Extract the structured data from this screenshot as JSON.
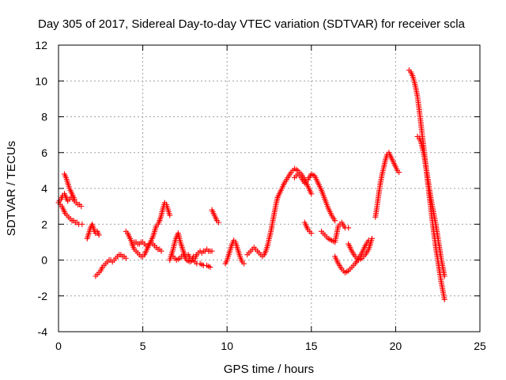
{
  "chart_data": {
    "type": "scatter",
    "title": "Day 305 of 2017, Sidereal Day-to-day VTEC variation (SDTVAR) for receiver scla",
    "xlabel": "GPS time / hours",
    "ylabel": "SDTVAR / TECUs",
    "xlim": [
      0,
      25
    ],
    "ylim": [
      -4,
      12
    ],
    "xticks": [
      0,
      5,
      10,
      15,
      20,
      25
    ],
    "yticks": [
      -4,
      -2,
      0,
      2,
      4,
      6,
      8,
      10,
      12
    ],
    "grid": true,
    "legend": "none",
    "marker": "plus",
    "color": "#ff0000",
    "series": [
      {
        "name": "s1",
        "x": [
          0.0,
          0.1,
          0.2,
          0.3,
          0.4,
          0.5,
          0.6,
          0.7,
          0.8,
          0.9,
          1.0,
          1.1,
          1.2,
          1.4
        ],
        "y": [
          3.2,
          3.1,
          3.0,
          2.8,
          2.6,
          2.5,
          2.4,
          2.3,
          2.2,
          2.2,
          2.1,
          2.1,
          2.0,
          2.0
        ]
      },
      {
        "name": "s2",
        "x": [
          0.05,
          0.15,
          0.25,
          0.35,
          0.45,
          0.55,
          0.65,
          0.75,
          0.85,
          0.95,
          1.05,
          1.15,
          1.25,
          1.35
        ],
        "y": [
          3.3,
          3.4,
          3.6,
          3.7,
          3.5,
          3.3,
          3.4,
          3.5,
          3.4,
          3.3,
          3.2,
          3.1,
          3.1,
          3.0
        ]
      },
      {
        "name": "s3",
        "x": [
          0.35,
          0.45,
          0.55,
          0.65,
          0.75,
          0.85,
          0.95
        ],
        "y": [
          4.8,
          4.6,
          4.3,
          4.0,
          3.8,
          3.6,
          3.4
        ]
      },
      {
        "name": "s4",
        "x": [
          1.7,
          1.8,
          1.9,
          2.0,
          2.1,
          2.2,
          2.3,
          2.4
        ],
        "y": [
          1.2,
          1.5,
          1.8,
          2.0,
          1.7,
          1.5,
          1.6,
          1.4
        ]
      },
      {
        "name": "s5",
        "x": [
          2.2,
          2.3,
          2.4,
          2.5,
          2.6,
          2.7,
          2.8,
          2.9,
          3.0,
          3.1,
          3.2,
          3.3,
          3.4,
          3.5,
          3.6,
          3.7,
          3.8,
          3.9,
          4.0
        ],
        "y": [
          -0.9,
          -0.8,
          -0.7,
          -0.6,
          -0.4,
          -0.3,
          -0.2,
          -0.1,
          0.0,
          0.0,
          -0.1,
          0.0,
          0.1,
          0.2,
          0.3,
          0.3,
          0.2,
          0.2,
          0.1
        ]
      },
      {
        "name": "s6",
        "x": [
          4.0,
          4.1,
          4.2,
          4.3,
          4.4,
          4.5,
          4.6,
          4.7,
          4.8,
          4.9,
          5.0,
          5.1,
          5.2,
          5.3,
          5.4,
          5.5,
          5.6,
          5.7,
          5.8,
          5.9,
          6.0
        ],
        "y": [
          1.6,
          1.5,
          1.3,
          1.1,
          0.8,
          0.6,
          0.5,
          0.4,
          0.3,
          0.2,
          0.2,
          0.3,
          0.5,
          0.7,
          0.9,
          1.1,
          1.3,
          1.6,
          1.9,
          2.0,
          2.2
        ]
      },
      {
        "name": "s7",
        "x": [
          4.4,
          4.5,
          4.6,
          4.7,
          4.8,
          4.9,
          5.0,
          5.1,
          5.2,
          5.3,
          5.4,
          5.5,
          5.6,
          5.7,
          5.8,
          5.9,
          6.0,
          6.1
        ],
        "y": [
          0.9,
          1.0,
          1.0,
          0.9,
          0.9,
          1.0,
          1.0,
          0.9,
          0.8,
          0.8,
          0.9,
          1.0,
          0.9,
          0.8,
          0.7,
          0.6,
          0.6,
          0.5
        ]
      },
      {
        "name": "s8",
        "x": [
          6.0,
          6.1,
          6.2,
          6.3,
          6.4,
          6.5,
          6.6
        ],
        "y": [
          2.2,
          2.5,
          2.9,
          3.2,
          3.1,
          2.8,
          2.5
        ]
      },
      {
        "name": "s9",
        "x": [
          6.6,
          6.7,
          6.8,
          6.9,
          7.0,
          7.1,
          7.2,
          7.3,
          7.4,
          7.5,
          7.6,
          7.7,
          7.8,
          7.9,
          8.0,
          8.1,
          8.2,
          8.3,
          8.4,
          8.5,
          8.6,
          8.7,
          8.8,
          8.9,
          9.0,
          9.1
        ],
        "y": [
          0.0,
          0.3,
          0.6,
          1.0,
          1.3,
          1.5,
          1.1,
          0.8,
          0.5,
          0.3,
          0.2,
          0.3,
          0.1,
          0.0,
          0.2,
          0.1,
          0.3,
          0.4,
          0.5,
          0.4,
          0.5,
          0.5,
          0.6,
          0.5,
          0.5,
          0.5
        ]
      },
      {
        "name": "s10",
        "x": [
          6.8,
          7.0,
          7.2,
          7.4,
          7.6,
          7.8,
          8.0,
          8.2,
          8.4,
          8.6,
          8.8,
          9.0
        ],
        "y": [
          0.2,
          0.0,
          0.1,
          0.3,
          0.0,
          -0.1,
          0.0,
          -0.2,
          -0.2,
          -0.3,
          -0.3,
          -0.4
        ]
      },
      {
        "name": "s11",
        "x": [
          9.1,
          9.2,
          9.3,
          9.4,
          9.5
        ],
        "y": [
          2.8,
          2.6,
          2.4,
          2.2,
          2.1
        ]
      },
      {
        "name": "s12",
        "x": [
          9.9,
          10.0,
          10.1,
          10.2,
          10.3,
          10.4,
          10.5,
          10.6,
          10.7,
          10.8,
          10.9,
          11.0
        ],
        "y": [
          -0.2,
          0.0,
          0.3,
          0.6,
          0.9,
          1.1,
          1.0,
          0.7,
          0.4,
          0.1,
          -0.1,
          -0.2
        ]
      },
      {
        "name": "s13",
        "x": [
          11.2,
          11.3,
          11.4,
          11.5,
          11.6,
          11.7,
          11.8,
          11.9,
          12.0,
          12.1,
          12.2,
          12.3,
          12.4,
          12.5,
          12.6,
          12.7,
          12.8,
          12.9,
          13.0
        ],
        "y": [
          0.3,
          0.4,
          0.5,
          0.6,
          0.7,
          0.6,
          0.5,
          0.4,
          0.3,
          0.2,
          0.3,
          0.5,
          0.8,
          1.2,
          1.6,
          2.1,
          2.6,
          3.1,
          3.5
        ]
      },
      {
        "name": "s14",
        "x": [
          13.0,
          13.2,
          13.4,
          13.6,
          13.8,
          14.0,
          14.2,
          14.4,
          14.6,
          14.8,
          15.0
        ],
        "y": [
          3.5,
          3.9,
          4.3,
          4.6,
          4.9,
          5.1,
          5.0,
          4.8,
          4.5,
          4.1,
          3.7
        ]
      },
      {
        "name": "s15",
        "x": [
          14.0,
          14.2,
          14.4,
          14.6,
          14.8,
          15.0,
          15.2,
          15.4,
          15.6,
          15.8,
          16.0,
          16.2,
          16.4
        ],
        "y": [
          4.6,
          4.8,
          4.6,
          4.3,
          4.5,
          4.8,
          4.7,
          4.3,
          3.9,
          3.4,
          2.9,
          2.5,
          2.2
        ]
      },
      {
        "name": "s16",
        "x": [
          14.6,
          14.7,
          14.8,
          14.9,
          15.0
        ],
        "y": [
          2.1,
          1.9,
          1.7,
          1.6,
          1.5
        ]
      },
      {
        "name": "s17",
        "x": [
          15.6,
          15.8,
          16.0,
          16.2,
          16.4,
          16.6,
          16.8,
          17.0,
          17.2
        ],
        "y": [
          1.6,
          1.4,
          1.2,
          1.1,
          1.0,
          1.9,
          2.1,
          1.8,
          1.8
        ]
      },
      {
        "name": "s18",
        "x": [
          16.4,
          16.6,
          16.8,
          17.0,
          17.2,
          17.4,
          17.6,
          17.8,
          18.0,
          18.2,
          18.4
        ],
        "y": [
          0.2,
          -0.2,
          -0.5,
          -0.7,
          -0.6,
          -0.4,
          -0.2,
          0.1,
          0.4,
          0.8,
          1.1
        ]
      },
      {
        "name": "s19",
        "x": [
          17.2,
          17.4,
          17.6,
          17.8,
          18.0,
          18.2,
          18.4,
          18.6
        ],
        "y": [
          0.9,
          0.5,
          0.2,
          0.0,
          0.1,
          0.3,
          0.6,
          1.2
        ]
      },
      {
        "name": "s20",
        "x": [
          18.8,
          18.9,
          19.0,
          19.1,
          19.2,
          19.3,
          19.4,
          19.5,
          19.6,
          19.7,
          19.8,
          19.9,
          20.0,
          20.1,
          20.2
        ],
        "y": [
          2.4,
          3.0,
          3.7,
          4.3,
          4.8,
          5.2,
          5.6,
          5.9,
          6.0,
          5.8,
          5.6,
          5.4,
          5.2,
          5.0,
          4.9
        ]
      },
      {
        "name": "s21",
        "x": [
          20.8,
          20.9,
          21.0,
          21.1,
          21.2,
          21.3,
          21.4,
          21.5,
          21.6,
          21.7,
          21.8,
          21.9,
          22.0,
          22.1,
          22.2,
          22.3,
          22.4,
          22.5,
          22.6,
          22.7,
          22.8,
          22.9
        ],
        "y": [
          10.6,
          10.5,
          10.3,
          10.0,
          9.6,
          9.1,
          8.4,
          7.6,
          6.8,
          6.0,
          5.2,
          4.4,
          3.6,
          2.8,
          2.0,
          1.3,
          0.6,
          0.0,
          -0.6,
          -1.2,
          -1.7,
          -2.2
        ]
      },
      {
        "name": "s22",
        "x": [
          21.3,
          21.4,
          21.5,
          21.6,
          21.7,
          21.8,
          21.9,
          22.0,
          22.1,
          22.2,
          22.3,
          22.4,
          22.5,
          22.6,
          22.7,
          22.8,
          22.9
        ],
        "y": [
          6.9,
          6.8,
          6.6,
          6.2,
          5.8,
          5.2,
          4.6,
          4.0,
          3.4,
          2.9,
          2.4,
          1.9,
          1.3,
          0.7,
          0.1,
          -0.4,
          -0.9
        ]
      }
    ]
  }
}
